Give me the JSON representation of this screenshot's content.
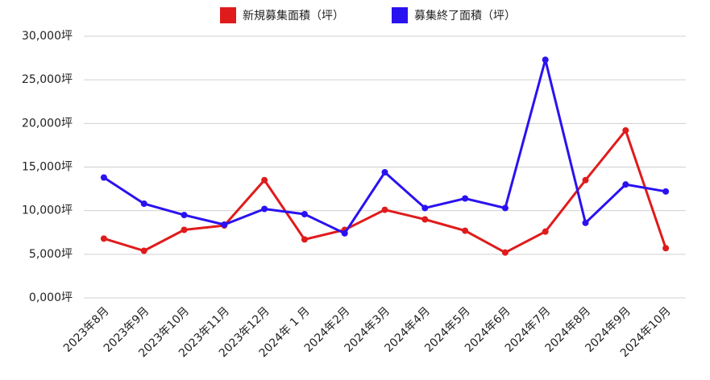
{
  "chart_data": {
    "type": "line",
    "categories": [
      "2023年8月",
      "2023年9月",
      "2023年10月",
      "2023年11月",
      "2023年12月",
      "2024年 1 月",
      "2024年2月",
      "2024年3月",
      "2024年4月",
      "2024年5月",
      "2024年6月",
      "2024年7月",
      "2024年8月",
      "2024年9月",
      "2024年10月"
    ],
    "series": [
      {
        "name": "新規募集面積（坪）",
        "color": "#e01b1b",
        "values": [
          6800,
          5400,
          7800,
          8300,
          13500,
          6700,
          7800,
          10100,
          9000,
          7700,
          5200,
          7600,
          13500,
          19200,
          5700
        ]
      },
      {
        "name": "募集終了面積（坪）",
        "color": "#2a12f0",
        "values": [
          13800,
          10800,
          9500,
          8400,
          10200,
          9600,
          7400,
          14400,
          10300,
          11400,
          10300,
          27300,
          8600,
          13000,
          12200
        ]
      }
    ],
    "ylim": [
      0,
      30000
    ],
    "yticks": [
      {
        "value": 0,
        "label": "0,000坪"
      },
      {
        "value": 5000,
        "label": "5,000坪"
      },
      {
        "value": 10000,
        "label": "10,000坪"
      },
      {
        "value": 15000,
        "label": "15,000坪"
      },
      {
        "value": 20000,
        "label": "20,000坪"
      },
      {
        "value": 25000,
        "label": "25,000坪"
      },
      {
        "value": 30000,
        "label": "30,000坪"
      }
    ],
    "grid": true,
    "legend": "top"
  }
}
